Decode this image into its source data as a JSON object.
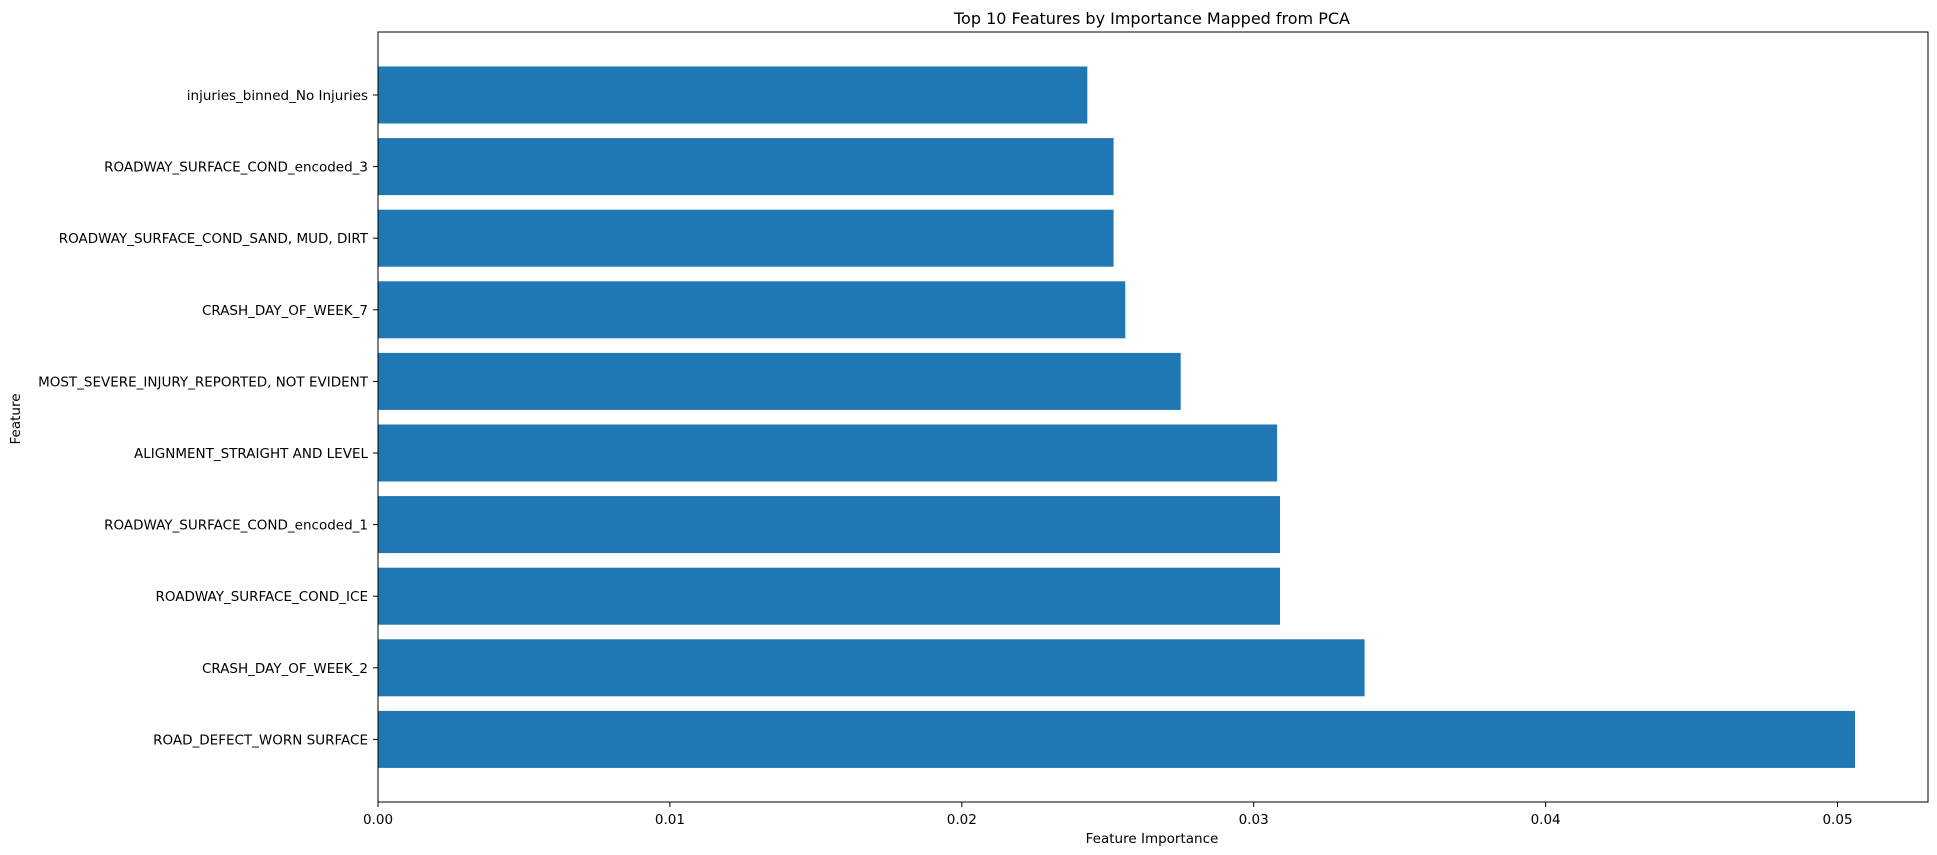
{
  "chart_data": {
    "type": "bar",
    "orientation": "horizontal",
    "title": "Top 10 Features by Importance Mapped from PCA",
    "xlabel": "Feature Importance",
    "ylabel": "Feature",
    "xlim": [
      0,
      0.0531
    ],
    "xticks": [
      "0.00",
      "0.01",
      "0.02",
      "0.03",
      "0.04",
      "0.05"
    ],
    "grid": false,
    "bar_color": "#1f77b4",
    "categories": [
      "injuries_binned_No Injuries",
      "ROADWAY_SURFACE_COND_encoded_3",
      "ROADWAY_SURFACE_COND_SAND, MUD, DIRT",
      "CRASH_DAY_OF_WEEK_7",
      "MOST_SEVERE_INJURY_REPORTED, NOT EVIDENT",
      "ALIGNMENT_STRAIGHT AND LEVEL",
      "ROADWAY_SURFACE_COND_encoded_1",
      "ROADWAY_SURFACE_COND_ICE",
      "CRASH_DAY_OF_WEEK_2",
      "ROAD_DEFECT_WORN SURFACE"
    ],
    "values": [
      0.0243,
      0.0252,
      0.0252,
      0.0256,
      0.0275,
      0.0308,
      0.0309,
      0.0309,
      0.0338,
      0.0506
    ]
  }
}
